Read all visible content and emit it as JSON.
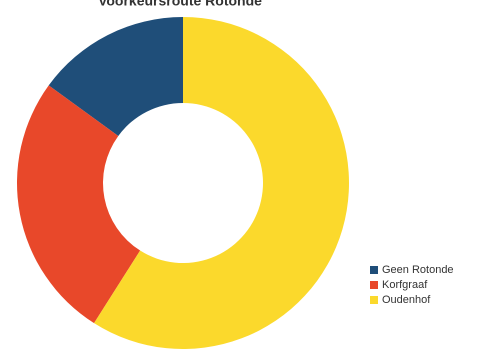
{
  "chart_data": {
    "type": "donut",
    "title": "Voorkeursroute Rotonde",
    "categories": [
      "Geen Rotonde",
      "Korfgraaf",
      "Oudenhof"
    ],
    "values": [
      15,
      26,
      59
    ],
    "colors": [
      "#1f4e79",
      "#e8482a",
      "#fbd92c"
    ],
    "legend": "bottom-right"
  }
}
